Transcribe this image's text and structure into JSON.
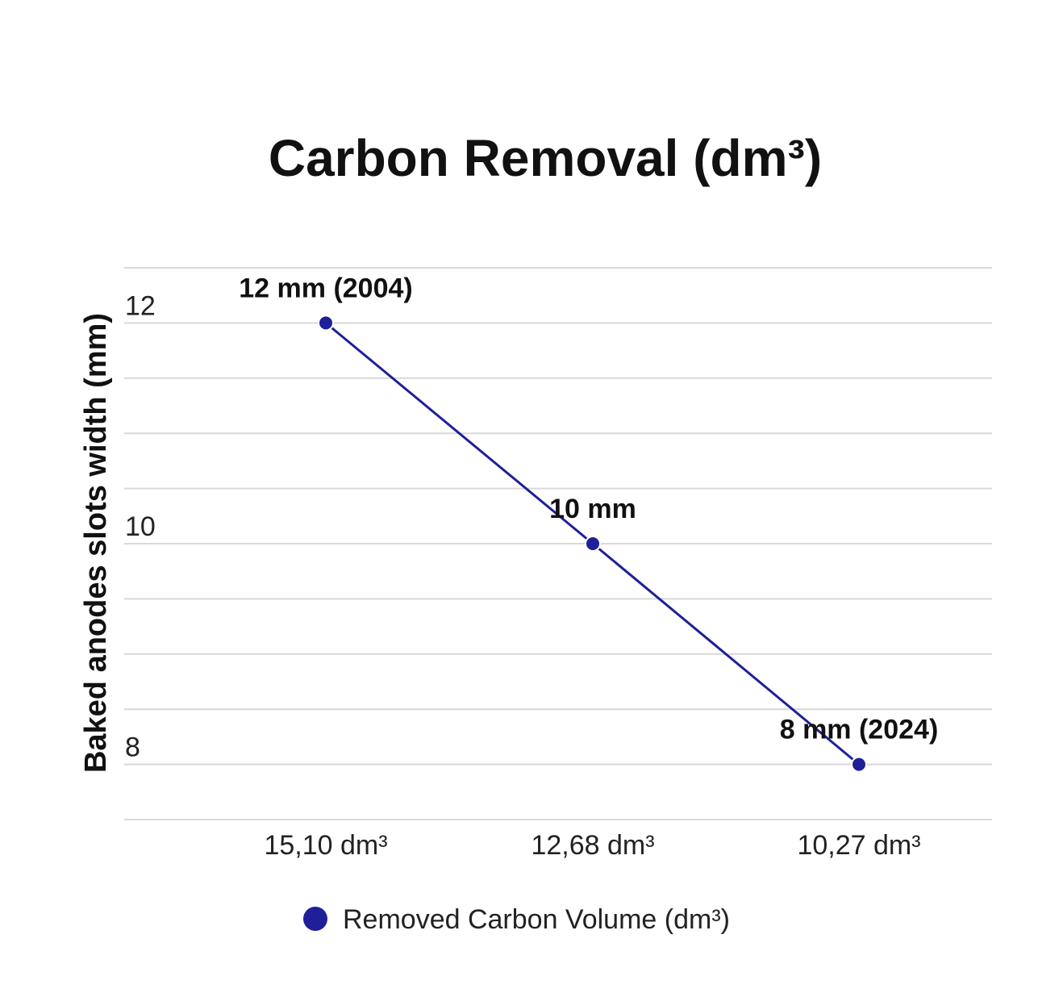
{
  "chart_data": {
    "type": "line",
    "title": "Carbon Removal (dm³)",
    "xlabel": "",
    "ylabel": "Baked anodes slots width (mm)",
    "categories": [
      "15,10 dm³",
      "12,68 dm³",
      "10,27 dm³"
    ],
    "series": [
      {
        "name": "Removed Carbon Volume (dm³)",
        "values": [
          12,
          10,
          8
        ],
        "color": "#1f1f99",
        "data_labels": [
          "12 mm (2004)",
          "10 mm",
          "8 mm (2024)"
        ]
      }
    ],
    "ylim": [
      7.5,
      12.5
    ],
    "yticks": [
      8,
      10,
      12
    ],
    "ytick_labels": [
      "8",
      "10",
      "12"
    ],
    "grid": true,
    "legend_position": "bottom"
  }
}
